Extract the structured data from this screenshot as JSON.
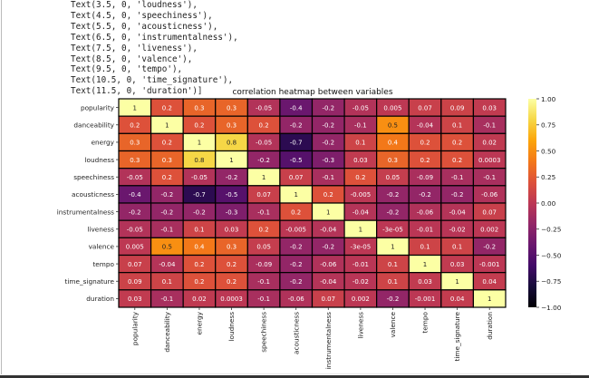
{
  "output_lines": [
    "Text(3.5, 0, 'loudness'),",
    "Text(4.5, 0, 'speechiness'),",
    "Text(5.5, 0, 'acousticness'),",
    "Text(6.5, 0, 'instrumentalness'),",
    "Text(7.5, 0, 'liveness'),",
    "Text(8.5, 0, 'valence'),",
    "Text(9.5, 0, 'tempo'),",
    "Text(10.5, 0, 'time_signature'),",
    "Text(11.5, 0, 'duration')]"
  ],
  "chart_data": {
    "type": "heatmap",
    "title": "correlation heatmap between variables",
    "colormap": "inferno",
    "vmin": -1,
    "vmax": 1,
    "colorbar_ticks": [
      "1.00",
      "0.75",
      "0.50",
      "0.25",
      "0.00",
      "−0.25",
      "−0.50",
      "−0.75",
      "−1.00"
    ],
    "labels": [
      "popularity",
      "danceability",
      "energy",
      "loudness",
      "speechiness",
      "acousticness",
      "instrumentalness",
      "liveness",
      "valence",
      "tempo",
      "time_signature",
      "duration"
    ],
    "values": [
      [
        1,
        0.2,
        0.3,
        0.3,
        -0.05,
        -0.4,
        -0.2,
        -0.05,
        0.005,
        0.07,
        0.09,
        0.03
      ],
      [
        0.2,
        1,
        0.2,
        0.3,
        0.2,
        -0.2,
        -0.2,
        -0.1,
        0.5,
        -0.04,
        0.1,
        -0.1
      ],
      [
        0.3,
        0.2,
        1,
        0.8,
        -0.05,
        -0.7,
        -0.2,
        0.1,
        0.4,
        0.2,
        0.2,
        0.02
      ],
      [
        0.3,
        0.3,
        0.8,
        1,
        -0.2,
        -0.5,
        -0.3,
        0.03,
        0.3,
        0.2,
        0.2,
        0.0003
      ],
      [
        -0.05,
        0.2,
        -0.05,
        -0.2,
        1,
        0.07,
        -0.1,
        0.2,
        0.05,
        -0.09,
        -0.1,
        -0.1
      ],
      [
        -0.4,
        -0.2,
        -0.7,
        -0.5,
        0.07,
        1,
        0.2,
        -0.005,
        -0.2,
        -0.2,
        -0.2,
        -0.06
      ],
      [
        -0.2,
        -0.2,
        -0.2,
        -0.3,
        -0.1,
        0.2,
        1,
        -0.04,
        -0.2,
        -0.06,
        -0.04,
        0.07
      ],
      [
        -0.05,
        -0.1,
        0.1,
        0.03,
        0.2,
        -0.005,
        -0.04,
        1,
        -3e-05,
        -0.01,
        -0.02,
        0.002
      ],
      [
        0.005,
        0.5,
        0.4,
        0.3,
        0.05,
        -0.2,
        -0.2,
        -3e-05,
        1,
        0.1,
        0.1,
        -0.2
      ],
      [
        0.07,
        -0.04,
        0.2,
        0.2,
        -0.09,
        -0.2,
        -0.06,
        -0.01,
        0.1,
        1,
        0.03,
        -0.001
      ],
      [
        0.09,
        0.1,
        0.2,
        0.2,
        -0.1,
        -0.2,
        -0.04,
        -0.02,
        0.1,
        0.03,
        1,
        0.04
      ],
      [
        0.03,
        -0.1,
        0.02,
        0.0003,
        -0.1,
        -0.06,
        0.07,
        0.002,
        -0.2,
        -0.001,
        0.04,
        1
      ]
    ]
  }
}
